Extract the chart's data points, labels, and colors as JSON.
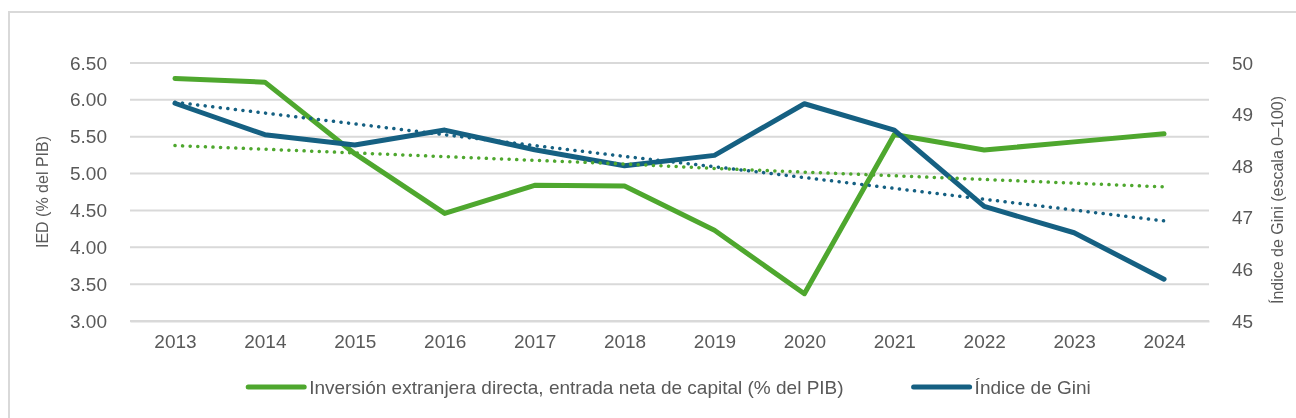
{
  "chart_data": {
    "type": "line",
    "x": [
      2013,
      2014,
      2015,
      2016,
      2017,
      2018,
      2019,
      2020,
      2021,
      2022,
      2023,
      2024
    ],
    "xlim": [
      2012.5,
      2024.5
    ],
    "xticks": [
      2013,
      2014,
      2015,
      2016,
      2017,
      2018,
      2019,
      2020,
      2021,
      2022,
      2023,
      2024
    ],
    "ylabel": "IED (% del PIB)",
    "y2label": "Índice de Gini (escala 0–100)",
    "ylim": [
      3,
      6.5
    ],
    "yticks": [
      {
        "value": 3,
        "label": "3.00"
      },
      {
        "value": 3.5,
        "label": "3.50"
      },
      {
        "value": 4,
        "label": "4.00"
      },
      {
        "value": 4.5,
        "label": "4.50"
      },
      {
        "value": 5,
        "label": "5.00"
      },
      {
        "value": 5.5,
        "label": "5.50"
      },
      {
        "value": 6,
        "label": "6.00"
      },
      {
        "value": 6.5,
        "label": "6.50"
      }
    ],
    "y2lim": [
      45,
      50
    ],
    "y2ticks": [
      45,
      46,
      47,
      48,
      49,
      50
    ],
    "grid": "y",
    "legend": "bottom",
    "series": [
      {
        "name": "Inversión extranjera directa, entrada neta de capital (% del PIB)",
        "color": "#4ea72e",
        "values": [
          6.29,
          6.24,
          5.27,
          4.46,
          4.84,
          4.83,
          4.23,
          3.37,
          5.53,
          5.32,
          5.43,
          5.54
        ]
      },
      {
        "name": "Índice de Gini",
        "color": "#156082",
        "axis": "y2",
        "values": [
          49.22,
          48.61,
          48.41,
          48.7,
          48.32,
          48.01,
          48.21,
          49.21,
          48.7,
          47.22,
          46.71,
          45.81
        ]
      },
      {
        "type": "line",
        "color": "#4ea72e",
        "line_style": "dotted",
        "values": [
          5.38,
          5.33,
          5.28,
          5.23,
          5.18,
          5.13,
          5.07,
          5.02,
          4.97,
          4.92,
          4.87,
          4.82
        ]
      },
      {
        "type": "line",
        "color": "#156082",
        "line_style": "dotted",
        "axis": "y2",
        "values": [
          49.24,
          49.03,
          48.82,
          48.61,
          48.4,
          48.19,
          47.99,
          47.78,
          47.57,
          47.36,
          47.15,
          46.94
        ]
      }
    ]
  }
}
